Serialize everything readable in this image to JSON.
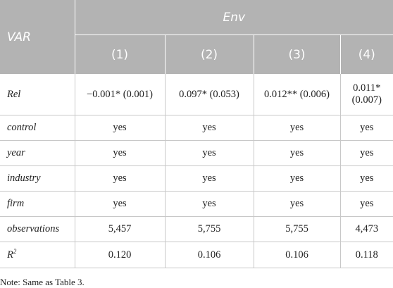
{
  "header": {
    "var_label": "VAR",
    "group_label": "Env",
    "columns": [
      "(1)",
      "(2)",
      "(3)",
      "(4)"
    ]
  },
  "rows": [
    {
      "label": "Rel",
      "cells": [
        "−0.001* (0.001)",
        "0.097* (0.053)",
        "0.012** (0.006)",
        "0.011* (0.007)"
      ]
    },
    {
      "label": "control",
      "cells": [
        "yes",
        "yes",
        "yes",
        "yes"
      ]
    },
    {
      "label": "year",
      "cells": [
        "yes",
        "yes",
        "yes",
        "yes"
      ]
    },
    {
      "label": "industry",
      "cells": [
        "yes",
        "yes",
        "yes",
        "yes"
      ]
    },
    {
      "label": "firm",
      "cells": [
        "yes",
        "yes",
        "yes",
        "yes"
      ]
    },
    {
      "label": "observations",
      "cells": [
        "5,457",
        "5,755",
        "5,755",
        "4,473"
      ]
    },
    {
      "label": "R",
      "label_sup": "2",
      "cells": [
        "0.120",
        "0.106",
        "0.106",
        "0.118"
      ]
    }
  ],
  "note": "Note: Same as Table 3."
}
